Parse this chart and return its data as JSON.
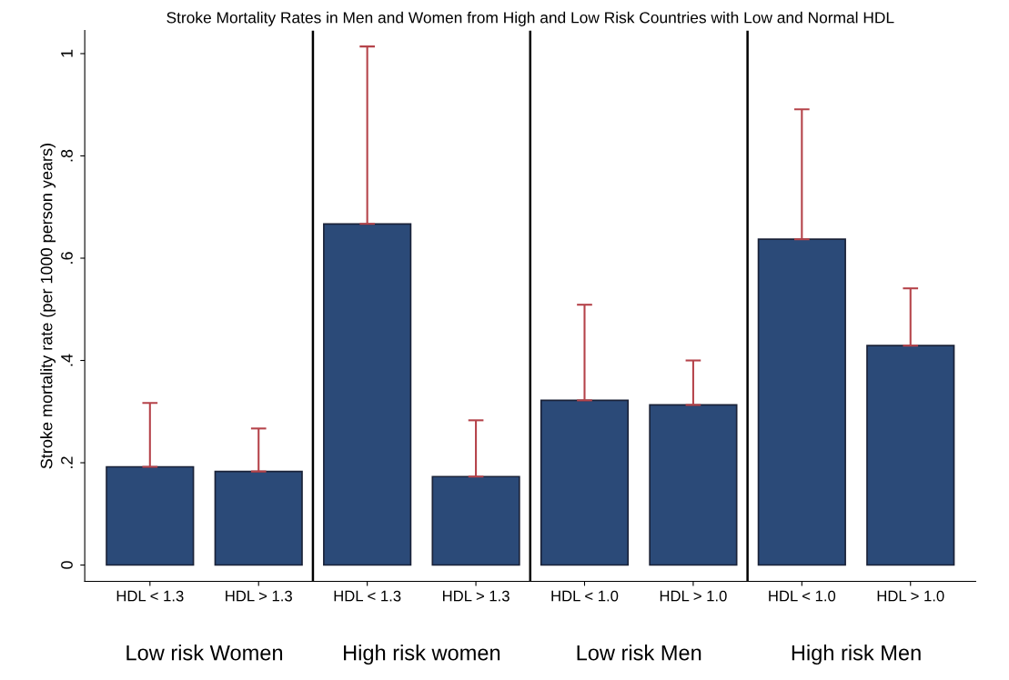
{
  "chart_data": {
    "type": "bar",
    "title": "Stroke Mortality Rates in Men and Women from High and Low Risk Countries with Low and Normal HDL",
    "ylabel": "Stroke mortality rate (per 1000 person years)",
    "categories": [
      "HDL < 1.3",
      "HDL > 1.3",
      "HDL < 1.3",
      "HDL > 1.3",
      "HDL < 1.0",
      "HDL > 1.0",
      "HDL < 1.0",
      "HDL > 1.0"
    ],
    "values": [
      0.192,
      0.183,
      0.667,
      0.173,
      0.322,
      0.313,
      0.637,
      0.429
    ],
    "errors": [
      [
        0.192,
        0.317
      ],
      [
        0.183,
        0.267
      ],
      [
        0.667,
        1.014
      ],
      [
        0.173,
        0.283
      ],
      [
        0.322,
        0.509
      ],
      [
        0.313,
        0.4
      ],
      [
        0.637,
        0.891
      ],
      [
        0.429,
        0.541
      ]
    ],
    "color": "#2b4a78",
    "ylim": [
      -0.032,
      1.045
    ],
    "yticks": [
      0,
      {
        "value": 0.2,
        "label": ".2"
      },
      {
        "value": 0.4,
        "label": ".4"
      },
      {
        "value": 0.6,
        "label": ".6"
      },
      {
        "value": 0.8,
        "label": ".8"
      },
      1
    ],
    "annotations": [
      "Low risk Women",
      "High risk women",
      "Low risk Men",
      "High risk Men"
    ],
    "grid": false
  }
}
